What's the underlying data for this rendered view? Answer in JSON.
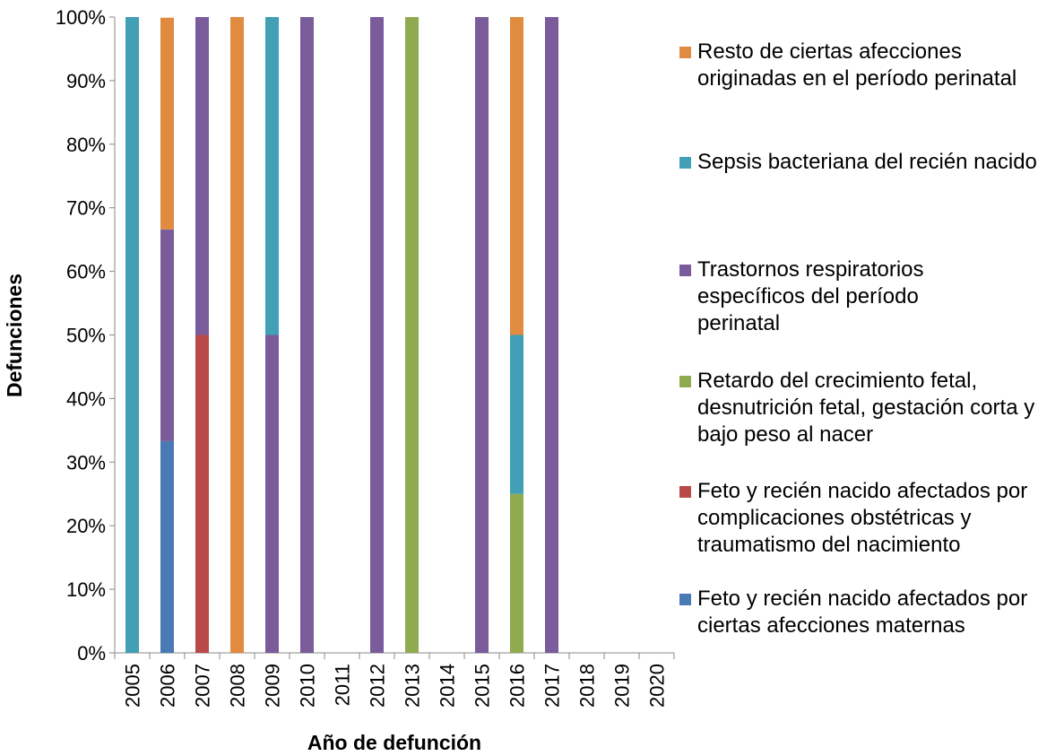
{
  "chart_data": {
    "type": "stacked_bar",
    "x_label": "Año de defunción",
    "y_label": "Defunciones",
    "categories": [
      "2005",
      "2006",
      "2007",
      "2008",
      "2009",
      "2010",
      "2011",
      "2012",
      "2013",
      "2014",
      "2015",
      "2016",
      "2017",
      "2018",
      "2019",
      "2020"
    ],
    "series": [
      {
        "name": "Feto y recién nacido afectados por ciertas afecciones maternas",
        "color": "#4a7ab5",
        "values": [
          0,
          33.3,
          0,
          0,
          0,
          0,
          0,
          0,
          0,
          0,
          0,
          0,
          0,
          0,
          0,
          0
        ]
      },
      {
        "name": "Feto y recién nacido afectados por complicaciones obstétricas y traumatismo del nacimiento",
        "color": "#b94a48",
        "values": [
          0,
          0,
          50,
          0,
          0,
          0,
          0,
          0,
          0,
          0,
          0,
          0,
          0,
          0,
          0,
          0
        ]
      },
      {
        "name": "Retardo del crecimiento fetal, desnutrición fetal, gestación corta y bajo peso al nacer",
        "color": "#8faa4f",
        "values": [
          0,
          0,
          0,
          0,
          0,
          0,
          0,
          0,
          100,
          0,
          0,
          25,
          0,
          0,
          0,
          0
        ]
      },
      {
        "name": "Trastornos respiratorios específicos del período perinatal",
        "color": "#7a5c9a",
        "values": [
          0,
          33.3,
          50,
          0,
          50,
          100,
          0,
          100,
          0,
          0,
          100,
          0,
          100,
          0,
          0,
          0
        ]
      },
      {
        "name": "Sepsis bacteriana del recién nacido",
        "color": "#41a0b5",
        "values": [
          100,
          0,
          0,
          0,
          50,
          0,
          0,
          0,
          0,
          0,
          0,
          25,
          0,
          0,
          0,
          0
        ]
      },
      {
        "name": "Resto de ciertas afecciones originadas en el período perinatal",
        "color": "#e08b3f",
        "values": [
          0,
          33.3,
          0,
          100,
          0,
          0,
          0,
          0,
          0,
          0,
          0,
          50,
          0,
          0,
          0,
          0
        ]
      }
    ],
    "ylim": [
      0,
      100
    ],
    "yticks": [
      {
        "value": 0,
        "label": "0%"
      },
      {
        "value": 10,
        "label": "10%"
      },
      {
        "value": 20,
        "label": "20%"
      },
      {
        "value": 30,
        "label": "30%"
      },
      {
        "value": 40,
        "label": "40%"
      },
      {
        "value": 50,
        "label": "50%"
      },
      {
        "value": 60,
        "label": "60%"
      },
      {
        "value": 70,
        "label": "70%"
      },
      {
        "value": 80,
        "label": "80%"
      },
      {
        "value": 90,
        "label": "90%"
      },
      {
        "value": 100,
        "label": "100%"
      }
    ],
    "legend": "right",
    "grid": false
  }
}
